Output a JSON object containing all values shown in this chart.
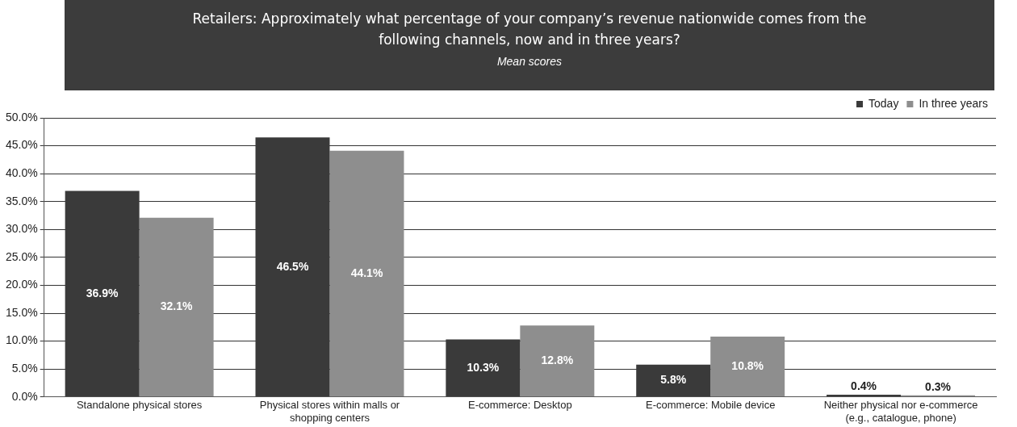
{
  "chart_data": {
    "type": "bar",
    "title": "Retailers: Approximately what percentage of your company’s revenue nationwide comes from the following channels, now and in three years?",
    "subtitle": "Mean scores",
    "categories": [
      "Standalone physical stores",
      "Physical stores within malls or shopping centers",
      "E-commerce: Desktop",
      "E-commerce: Mobile device",
      "Neither physical nor e-commerce (e.g., catalogue, phone)"
    ],
    "series": [
      {
        "name": "Today",
        "color": "#3a3a3a",
        "values": [
          36.9,
          46.5,
          10.3,
          5.8,
          0.4
        ],
        "value_labels": [
          "36.9%",
          "46.5%",
          "10.3%",
          "5.8%",
          "0.4%"
        ]
      },
      {
        "name": "In three years",
        "color": "#8e8e8e",
        "values": [
          32.1,
          44.1,
          12.8,
          10.8,
          0.3
        ],
        "value_labels": [
          "32.1%",
          "44.1%",
          "12.8%",
          "10.8%",
          "0.3%"
        ]
      }
    ],
    "ylim": [
      0,
      50
    ],
    "yticks": [
      {
        "value": 0,
        "label": "0.0%"
      },
      {
        "value": 5,
        "label": "5.0%"
      },
      {
        "value": 10,
        "label": "10.0%"
      },
      {
        "value": 15,
        "label": "15.0%"
      },
      {
        "value": 20,
        "label": "20.0%"
      },
      {
        "value": 25,
        "label": "25.0%"
      },
      {
        "value": 30,
        "label": "30.0%"
      },
      {
        "value": 35,
        "label": "35.0%"
      },
      {
        "value": 40,
        "label": "40.0%"
      },
      {
        "value": 45,
        "label": "45.0%"
      },
      {
        "value": 50,
        "label": "50.0%"
      }
    ],
    "grid": "y",
    "legend": "top right"
  }
}
